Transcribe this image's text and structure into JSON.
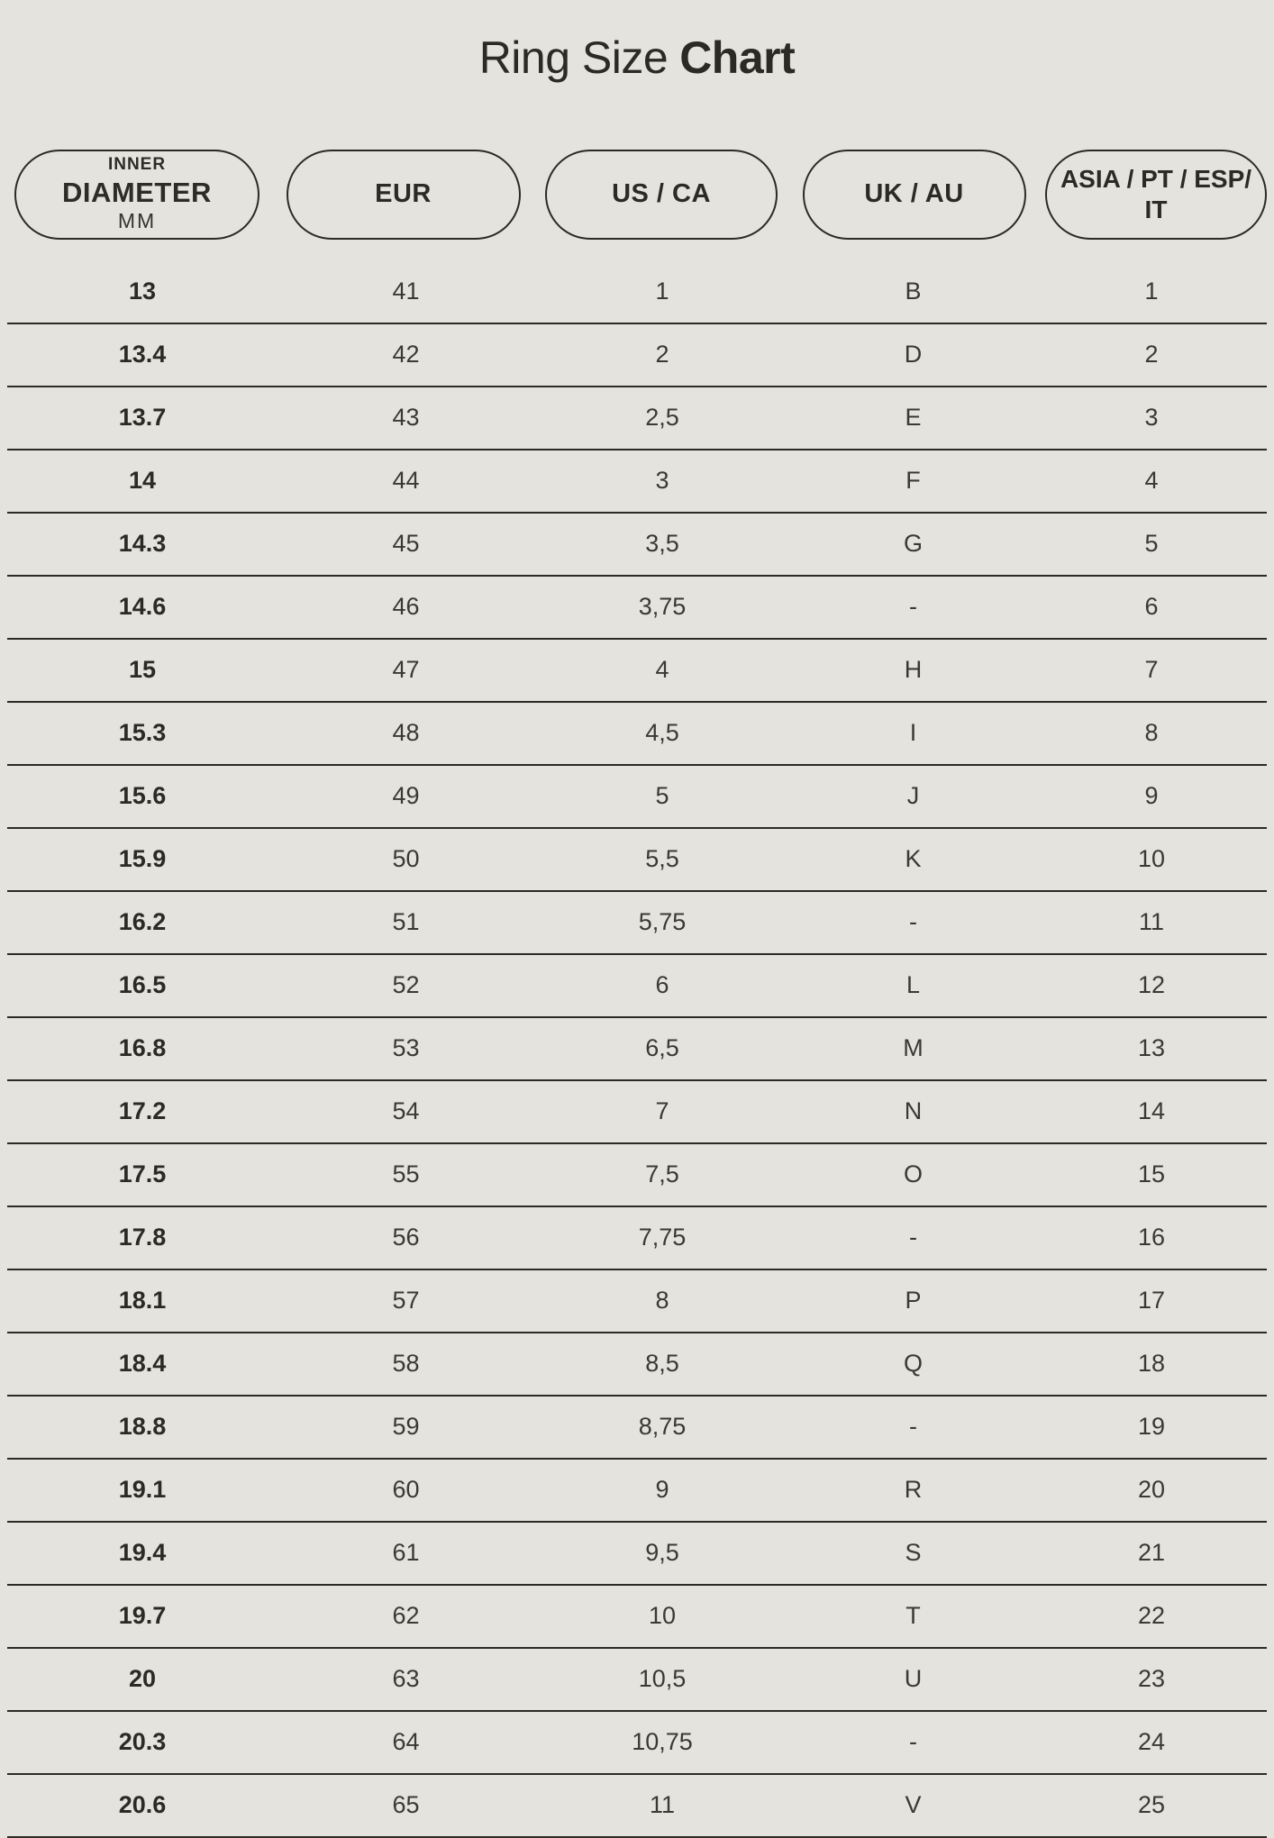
{
  "page": {
    "background_color": "#e4e3dd",
    "text_color": "#2b2a26",
    "divider_color": "#2b2a26"
  },
  "title": {
    "regular": "Ring Size",
    "bold": "Chart"
  },
  "columns": [
    {
      "id": "inner-diameter",
      "lines": [
        "INNER",
        "DIAMETER",
        "MM"
      ]
    },
    {
      "id": "eur",
      "label": "EUR"
    },
    {
      "id": "us-ca",
      "label": "US / CA"
    },
    {
      "id": "uk-au",
      "label": "UK / AU"
    },
    {
      "id": "asia-pt-esp-it",
      "label": "ASIA / PT / ESP/ IT"
    }
  ],
  "chart_data": {
    "type": "table",
    "title": "Ring Size Chart",
    "columns": [
      "INNER DIAMETER MM",
      "EUR",
      "US / CA",
      "UK / AU",
      "ASIA / PT / ESP/ IT"
    ],
    "rows": [
      [
        "13",
        "41",
        "1",
        "B",
        "1"
      ],
      [
        "13.4",
        "42",
        "2",
        "D",
        "2"
      ],
      [
        "13.7",
        "43",
        "2,5",
        "E",
        "3"
      ],
      [
        "14",
        "44",
        "3",
        "F",
        "4"
      ],
      [
        "14.3",
        "45",
        "3,5",
        "G",
        "5"
      ],
      [
        "14.6",
        "46",
        "3,75",
        "-",
        "6"
      ],
      [
        "15",
        "47",
        "4",
        "H",
        "7"
      ],
      [
        "15.3",
        "48",
        "4,5",
        "I",
        "8"
      ],
      [
        "15.6",
        "49",
        "5",
        "J",
        "9"
      ],
      [
        "15.9",
        "50",
        "5,5",
        "K",
        "10"
      ],
      [
        "16.2",
        "51",
        "5,75",
        "-",
        "11"
      ],
      [
        "16.5",
        "52",
        "6",
        "L",
        "12"
      ],
      [
        "16.8",
        "53",
        "6,5",
        "M",
        "13"
      ],
      [
        "17.2",
        "54",
        "7",
        "N",
        "14"
      ],
      [
        "17.5",
        "55",
        "7,5",
        "O",
        "15"
      ],
      [
        "17.8",
        "56",
        "7,75",
        "-",
        "16"
      ],
      [
        "18.1",
        "57",
        "8",
        "P",
        "17"
      ],
      [
        "18.4",
        "58",
        "8,5",
        "Q",
        "18"
      ],
      [
        "18.8",
        "59",
        "8,75",
        "-",
        "19"
      ],
      [
        "19.1",
        "60",
        "9",
        "R",
        "20"
      ],
      [
        "19.4",
        "61",
        "9,5",
        "S",
        "21"
      ],
      [
        "19.7",
        "62",
        "10",
        "T",
        "22"
      ],
      [
        "20",
        "63",
        "10,5",
        "U",
        "23"
      ],
      [
        "20.3",
        "64",
        "10,75",
        "-",
        "24"
      ],
      [
        "20.6",
        "65",
        "11",
        "V",
        "25"
      ]
    ]
  }
}
